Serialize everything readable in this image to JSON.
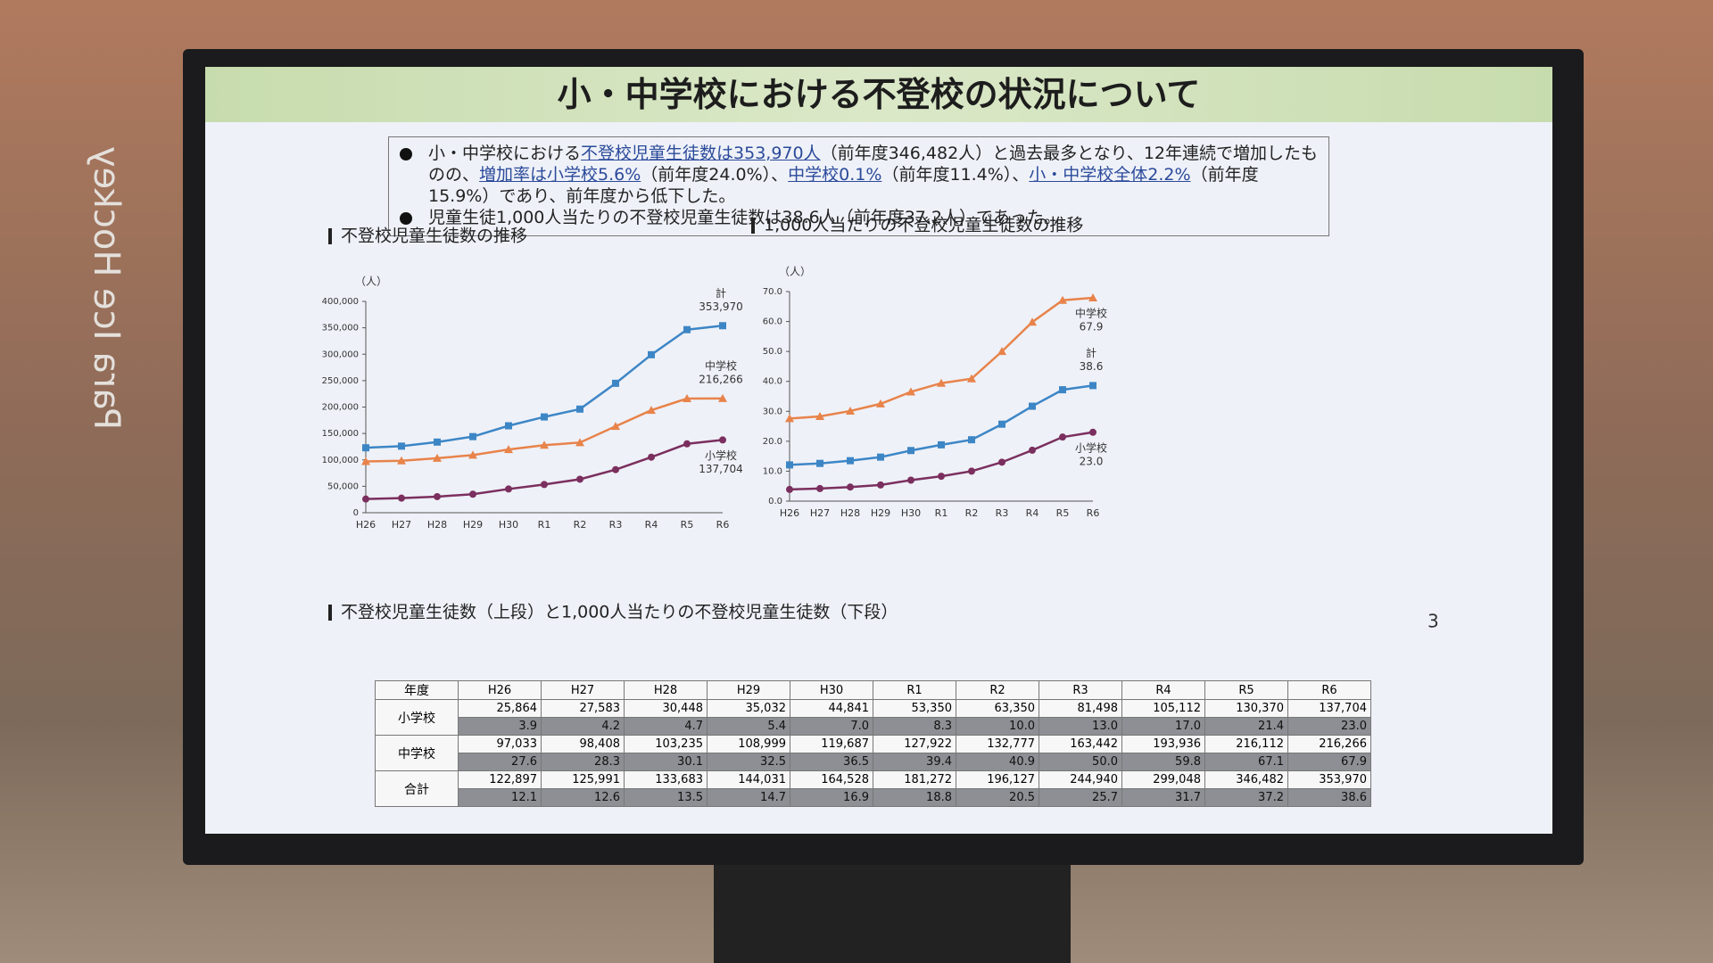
{
  "background_sign": "Para Ice Hockey",
  "slide": {
    "title": "小・中学校における不登校の状況について",
    "bullets": [
      [
        {
          "text": "小・中学校における"
        },
        {
          "text": "不登校児童生徒数は353,970人",
          "u": true
        },
        {
          "text": "（前年度346,482人）と過去最多となり、12年連続で増加したものの、"
        },
        {
          "text": "増加率は小学校5.6%",
          "u": true
        },
        {
          "text": "（前年度24.0%）、"
        },
        {
          "text": "中学校0.1%",
          "u": true
        },
        {
          "text": "（前年度11.4%）、"
        },
        {
          "text": "小・中学校全体2.2%",
          "u": true
        },
        {
          "text": "（前年度15.9%）であり、前年度から低下した。"
        }
      ],
      [
        {
          "text": "児童生徒1,000人当たりの不登校児童生徒数は38.6人（前年度37.2人）であった。"
        }
      ]
    ],
    "table_title": "不登校児童生徒数（上段）と1,000人当たりの不登校児童生徒数（下段）",
    "page_number": "3"
  },
  "chart_data": [
    {
      "type": "line",
      "section_title": "不登校児童生徒数の推移",
      "unit": "（人）",
      "categories": [
        "H26",
        "H27",
        "H28",
        "H29",
        "H30",
        "R1",
        "R2",
        "R3",
        "R4",
        "R5",
        "R6"
      ],
      "ylim": [
        0,
        400000
      ],
      "yticks": [
        0,
        {
          "value": 50000,
          "label": "50,000"
        },
        {
          "value": 100000,
          "label": "100,000"
        },
        {
          "value": 150000,
          "label": "150,000"
        },
        {
          "value": 200000,
          "label": "200,000"
        },
        {
          "value": 250000,
          "label": "250,000"
        },
        {
          "value": 300000,
          "label": "300,000"
        },
        {
          "value": 350000,
          "label": "350,000"
        },
        {
          "value": 400000,
          "label": "400,000"
        }
      ],
      "series": [
        {
          "name": "計",
          "color": "#3d86c6",
          "marker": "square",
          "values": [
            122897,
            125991,
            133683,
            144031,
            164528,
            181272,
            196127,
            244940,
            299048,
            346482,
            353970
          ],
          "value_labels": [
            null,
            null,
            null,
            null,
            null,
            null,
            null,
            null,
            null,
            null,
            "353,970"
          ]
        },
        {
          "name": "中学校",
          "color": "#e8834a",
          "marker": "triangle",
          "values": [
            97033,
            98408,
            103235,
            108999,
            119687,
            127922,
            132777,
            163442,
            193936,
            216112,
            216266
          ],
          "value_labels": [
            null,
            null,
            null,
            null,
            null,
            null,
            null,
            null,
            null,
            null,
            "216,266"
          ]
        },
        {
          "name": "小学校",
          "color": "#7b2f5e",
          "marker": "circle",
          "values": [
            25864,
            27583,
            30448,
            35032,
            44841,
            53350,
            63350,
            81498,
            105112,
            130370,
            137704
          ],
          "value_labels": [
            null,
            null,
            null,
            null,
            null,
            null,
            null,
            null,
            null,
            null,
            "137,704"
          ]
        }
      ]
    },
    {
      "type": "line",
      "section_title": "1,000人当たりの不登校児童生徒数の推移",
      "unit": "（人）",
      "categories": [
        "H26",
        "H27",
        "H28",
        "H29",
        "H30",
        "R1",
        "R2",
        "R3",
        "R4",
        "R5",
        "R6"
      ],
      "ylim": [
        0,
        70
      ],
      "yticks": [
        {
          "value": 0,
          "label": "0.0"
        },
        {
          "value": 10,
          "label": "10.0"
        },
        {
          "value": 20,
          "label": "20.0"
        },
        {
          "value": 30,
          "label": "30.0"
        },
        {
          "value": 40,
          "label": "40.0"
        },
        {
          "value": 50,
          "label": "50.0"
        },
        {
          "value": 60,
          "label": "60.0"
        },
        {
          "value": 70,
          "label": "70.0"
        }
      ],
      "series": [
        {
          "name": "中学校",
          "color": "#e8834a",
          "marker": "triangle",
          "values": [
            27.6,
            28.3,
            30.1,
            32.5,
            36.5,
            39.4,
            40.9,
            50.0,
            59.8,
            67.1,
            67.9
          ],
          "value_labels": [
            null,
            null,
            null,
            null,
            null,
            null,
            null,
            null,
            null,
            null,
            "67.9"
          ]
        },
        {
          "name": "計",
          "color": "#3d86c6",
          "marker": "square",
          "values": [
            12.1,
            12.6,
            13.5,
            14.7,
            16.9,
            18.8,
            20.5,
            25.7,
            31.7,
            37.2,
            38.6
          ],
          "value_labels": [
            null,
            null,
            null,
            null,
            null,
            null,
            null,
            null,
            null,
            null,
            "38.6"
          ]
        },
        {
          "name": "小学校",
          "color": "#7b2f5e",
          "marker": "circle",
          "values": [
            3.9,
            4.2,
            4.7,
            5.4,
            7.0,
            8.3,
            10.0,
            13.0,
            17.0,
            21.4,
            23.0
          ],
          "value_labels": [
            null,
            null,
            null,
            null,
            null,
            null,
            null,
            null,
            null,
            null,
            "23.0"
          ]
        }
      ]
    }
  ],
  "table": {
    "header": [
      "年度",
      "H26",
      "H27",
      "H28",
      "H29",
      "H30",
      "R1",
      "R2",
      "R3",
      "R4",
      "R5",
      "R6"
    ],
    "rows": [
      {
        "label": "小学校",
        "counts": [
          "25,864",
          "27,583",
          "30,448",
          "35,032",
          "44,841",
          "53,350",
          "63,350",
          "81,498",
          "105,112",
          "130,370",
          "137,704"
        ],
        "rates": [
          "3.9",
          "4.2",
          "4.7",
          "5.4",
          "7.0",
          "8.3",
          "10.0",
          "13.0",
          "17.0",
          "21.4",
          "23.0"
        ]
      },
      {
        "label": "中学校",
        "counts": [
          "97,033",
          "98,408",
          "103,235",
          "108,999",
          "119,687",
          "127,922",
          "132,777",
          "163,442",
          "193,936",
          "216,112",
          "216,266"
        ],
        "rates": [
          "27.6",
          "28.3",
          "30.1",
          "32.5",
          "36.5",
          "39.4",
          "40.9",
          "50.0",
          "59.8",
          "67.1",
          "67.9"
        ]
      },
      {
        "label": "合計",
        "counts": [
          "122,897",
          "125,991",
          "133,683",
          "144,031",
          "164,528",
          "181,272",
          "196,127",
          "244,940",
          "299,048",
          "346,482",
          "353,970"
        ],
        "rates": [
          "12.1",
          "12.6",
          "13.5",
          "14.7",
          "16.9",
          "18.8",
          "20.5",
          "25.7",
          "31.7",
          "37.2",
          "38.6"
        ]
      }
    ]
  }
}
